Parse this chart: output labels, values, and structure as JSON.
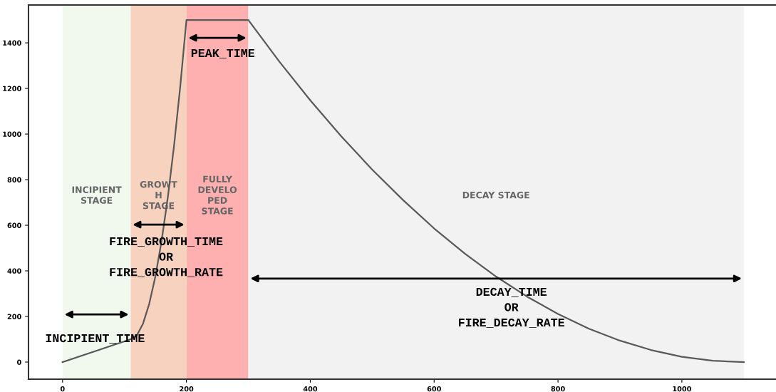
{
  "chart_data": {
    "type": "line",
    "x": [
      0,
      110,
      120,
      130,
      140,
      150,
      160,
      170,
      180,
      190,
      200,
      300,
      350,
      400,
      450,
      500,
      550,
      600,
      650,
      700,
      750,
      800,
      850,
      900,
      950,
      1000,
      1050,
      1100
    ],
    "series": [
      {
        "color": "#595959",
        "values": [
          0,
          100,
          117,
          169,
          256,
          377,
          533,
          723,
          948,
          1208,
          1500,
          1500,
          1318,
          1148,
          990,
          844,
          710,
          586,
          475,
          375,
          287,
          211,
          146,
          94,
          53,
          23,
          6,
          0
        ]
      }
    ],
    "xlim": [
      -55,
      1152
    ],
    "ylim": [
      -75,
      1566
    ],
    "xticks": [
      0,
      200,
      400,
      600,
      800,
      1000
    ],
    "yticks": [
      0,
      200,
      400,
      600,
      800,
      1000,
      1200,
      1400
    ],
    "grid": false,
    "bands": [
      {
        "axis": "x",
        "from": 0,
        "to": 110,
        "label": "INCIPIENT\nSTAGE",
        "color": "#f1f8ee"
      },
      {
        "axis": "x",
        "from": 110,
        "to": 200,
        "label": "GROWT\nH\nSTAGE",
        "color": "#f7d2be"
      },
      {
        "axis": "x",
        "from": 200,
        "to": 300,
        "label": "FULLY\nDEVELO\nPED\nSTAGE",
        "color": "#feb0b0"
      },
      {
        "axis": "x",
        "from": 300,
        "to": 1100,
        "label": "DECAY STAGE",
        "color": "#f2f2f2"
      }
    ],
    "annotations": [
      "INCIPIENT_TIME",
      "FIRE_GROWTH_TIME\nOR\nFIRE_GROWTH_RATE",
      "PEAK_TIME",
      "DECAY_TIME\nOR\nFIRE_DECAY_RATE"
    ]
  }
}
